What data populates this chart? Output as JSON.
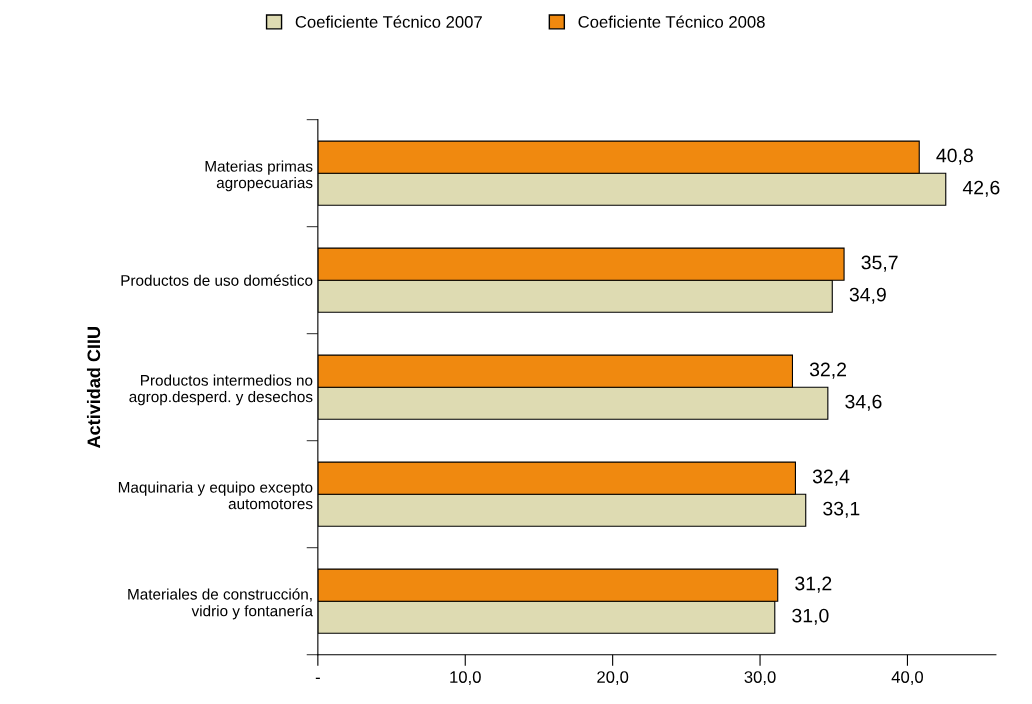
{
  "chart_data": {
    "type": "bar",
    "orientation": "horizontal",
    "ylabel": "Actividad CIIU",
    "categories": [
      "Materias primas\nagropecuarias",
      "Productos de uso doméstico",
      "Productos intermedios no\nagrop.desperd. y desechos",
      "Maquinaria y equipo excepto\nautomotores",
      "Materiales de construcción,\nvidrio y fontanería"
    ],
    "series": [
      {
        "name": "Coeficiente Técnico 2007",
        "color": "#dedbb2",
        "values": [
          42.6,
          34.9,
          34.6,
          33.1,
          31.0
        ],
        "value_labels": [
          "42,6",
          "34,9",
          "34,6",
          "33,1",
          "31,0"
        ]
      },
      {
        "name": "Coeficiente Técnico 2008",
        "color": "#f0890f",
        "values": [
          40.8,
          35.7,
          32.2,
          32.4,
          31.2
        ],
        "value_labels": [
          "40,8",
          "35,7",
          "32,2",
          "32,4",
          "31,2"
        ]
      }
    ],
    "xlim": [
      0,
      46
    ],
    "xticks": [
      {
        "value": 0,
        "label": "-"
      },
      {
        "value": 10,
        "label": "10,0"
      },
      {
        "value": 20,
        "label": "20,0"
      },
      {
        "value": 30,
        "label": "30,0"
      },
      {
        "value": 40,
        "label": "40,0"
      }
    ],
    "grid": false,
    "legend": "top"
  }
}
